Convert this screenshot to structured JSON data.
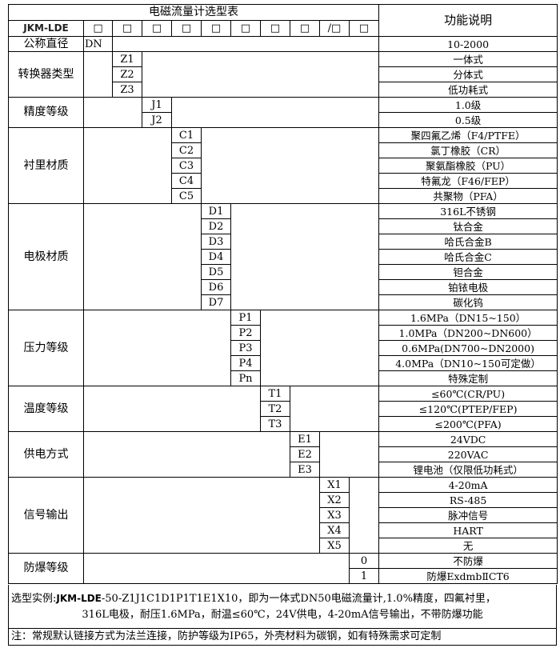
{
  "header": {
    "title": "电磁流量计选型表",
    "function_header": "功能说明",
    "model": "JKM-LDE",
    "code_boxes": [
      "□",
      "□",
      "□",
      "□",
      "□",
      "□",
      "□",
      "□",
      "/□",
      "□"
    ]
  },
  "groups": [
    {
      "label": "公称直径",
      "col": 1,
      "rows": [
        {
          "code": "DN",
          "desc": "10-2000"
        }
      ]
    },
    {
      "label": "转换器类型",
      "col": 2,
      "rows": [
        {
          "code": "Z1",
          "desc": "一体式"
        },
        {
          "code": "Z2",
          "desc": "分体式"
        },
        {
          "code": "Z3",
          "desc": "低功耗式"
        }
      ]
    },
    {
      "label": "精度等级",
      "col": 3,
      "rows": [
        {
          "code": "J1",
          "desc": "1.0级"
        },
        {
          "code": "J2",
          "desc": "0.5级"
        }
      ]
    },
    {
      "label": "衬里材质",
      "col": 4,
      "rows": [
        {
          "code": "C1",
          "desc": "聚四氟乙烯（F4/PTFE）"
        },
        {
          "code": "C2",
          "desc": "氯丁橡胶（CR）"
        },
        {
          "code": "C3",
          "desc": "聚氨酯橡胶（PU）"
        },
        {
          "code": "C4",
          "desc": "特氟龙（F46/FEP）"
        },
        {
          "code": "C5",
          "desc": "共聚物（PFA）"
        }
      ]
    },
    {
      "label": "电极材质",
      "col": 5,
      "rows": [
        {
          "code": "D1",
          "desc": "316L不锈钢"
        },
        {
          "code": "D2",
          "desc": "钛合金"
        },
        {
          "code": "D3",
          "desc": "哈氏合金B"
        },
        {
          "code": "D4",
          "desc": "哈氏合金C"
        },
        {
          "code": "D5",
          "desc": "钽合金"
        },
        {
          "code": "D6",
          "desc": "铂铱电极"
        },
        {
          "code": "D7",
          "desc": "碳化钨"
        }
      ]
    },
    {
      "label": "压力等级",
      "col": 6,
      "rows": [
        {
          "code": "P1",
          "desc": "1.6MPa（DN15~150）"
        },
        {
          "code": "P2",
          "desc": "1.0MPa（DN200~DN600）"
        },
        {
          "code": "P3",
          "desc": "0.6MPa(DN700~DN2000)"
        },
        {
          "code": "P4",
          "desc": "4.0MPa（DN10~150可定做）"
        },
        {
          "code": "Pn",
          "desc": "特殊定制"
        }
      ]
    },
    {
      "label": "温度等级",
      "col": 7,
      "rows": [
        {
          "code": "T1",
          "desc": "≤60℃(CR/PU)"
        },
        {
          "code": "T2",
          "desc": "≤120℃(PTEP/FEP)"
        },
        {
          "code": "T3",
          "desc": "≤200℃(PFA)"
        }
      ]
    },
    {
      "label": "供电方式",
      "col": 8,
      "rows": [
        {
          "code": "E1",
          "desc": "24VDC"
        },
        {
          "code": "E2",
          "desc": "220VAC"
        },
        {
          "code": "E3",
          "desc": "锂电池（仅限低功耗式）"
        }
      ]
    },
    {
      "label": "信号输出",
      "col": 9,
      "rows": [
        {
          "code": "X1",
          "desc": "4-20mA"
        },
        {
          "code": "X2",
          "desc": "RS-485"
        },
        {
          "code": "X3",
          "desc": "脉冲信号"
        },
        {
          "code": "X4",
          "desc": "HART"
        },
        {
          "code": "X5",
          "desc": "无"
        }
      ]
    },
    {
      "label": "防爆等级",
      "col": 10,
      "rows": [
        {
          "code": "0",
          "desc": "不防爆"
        },
        {
          "code": "1",
          "desc": "防爆ExdmbⅡCT6"
        }
      ]
    }
  ],
  "example": {
    "prefix": "选型实例:",
    "brand": "JKM-LDE",
    "line1_rest": "-50-Z1J1C1D1P1T1E1X10，即为一体式DN50电磁流量计,1.0%精度，四氟衬里，",
    "line2": "316L电极，耐压1.6MPa，耐温≤60℃，24V供电，4-20mA信号输出，不带防爆功能"
  },
  "note": "注：常规默认链接方式为法兰连接，防护等级为IP65，外壳材料为碳钢，如有特殊需求可定制"
}
